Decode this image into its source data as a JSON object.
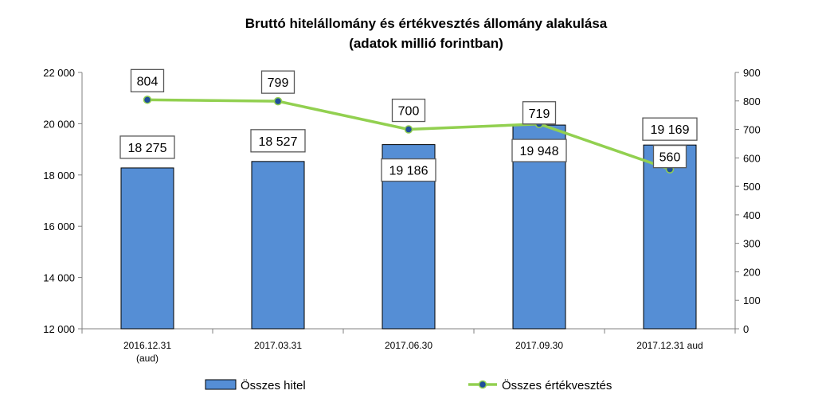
{
  "chart_data": {
    "type": "bar",
    "title": "Bruttó hitelállomány és értékvesztés állomány alakulása",
    "subtitle": "(adatok millió forintban)",
    "categories": [
      [
        "2016.12.31",
        "(aud)"
      ],
      [
        "2017.03.31"
      ],
      [
        "2017.06.30"
      ],
      [
        "2017.09.30"
      ],
      [
        "2017.12.31 aud"
      ]
    ],
    "y_left": {
      "ylim": [
        12000,
        22000
      ],
      "ticks": [
        12000,
        14000,
        16000,
        18000,
        20000,
        22000
      ],
      "tick_labels": [
        "12 000",
        "14 000",
        "16 000",
        "18 000",
        "20 000",
        "22 000"
      ]
    },
    "y_right": {
      "ylim": [
        0,
        900
      ],
      "ticks": [
        0,
        100,
        200,
        300,
        400,
        500,
        600,
        700,
        800,
        900
      ],
      "tick_labels": [
        "0",
        "100",
        "200",
        "300",
        "400",
        "500",
        "600",
        "700",
        "800",
        "900"
      ]
    },
    "grid": false,
    "legend_position": "bottom",
    "series": [
      {
        "name": "Összes hitel",
        "type": "bar",
        "axis": "left",
        "color": "#558ED5",
        "values": [
          18275,
          18527,
          19186,
          19948,
          19169
        ],
        "labels": [
          "18 275",
          "18 527",
          "19 186",
          "19 948",
          "19 169"
        ]
      },
      {
        "name": "Összes értékvesztés",
        "type": "line",
        "axis": "right",
        "color": "#92D050",
        "marker_color": "#1F4E9A",
        "values": [
          804,
          799,
          700,
          719,
          560
        ],
        "labels": [
          "804",
          "799",
          "700",
          "719",
          "560"
        ]
      }
    ]
  }
}
